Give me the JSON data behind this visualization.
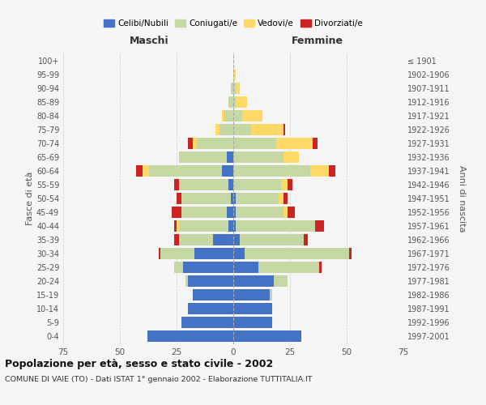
{
  "age_groups": [
    "0-4",
    "5-9",
    "10-14",
    "15-19",
    "20-24",
    "25-29",
    "30-34",
    "35-39",
    "40-44",
    "45-49",
    "50-54",
    "55-59",
    "60-64",
    "65-69",
    "70-74",
    "75-79",
    "80-84",
    "85-89",
    "90-94",
    "95-99",
    "100+"
  ],
  "birth_years": [
    "1997-2001",
    "1992-1996",
    "1987-1991",
    "1982-1986",
    "1977-1981",
    "1972-1976",
    "1967-1971",
    "1962-1966",
    "1957-1961",
    "1952-1956",
    "1947-1951",
    "1942-1946",
    "1937-1941",
    "1932-1936",
    "1927-1931",
    "1922-1926",
    "1917-1921",
    "1912-1916",
    "1907-1911",
    "1902-1906",
    "≤ 1901"
  ],
  "maschi": {
    "celibe": [
      38,
      23,
      20,
      18,
      20,
      22,
      17,
      9,
      2,
      3,
      1,
      2,
      5,
      3,
      0,
      0,
      0,
      0,
      0,
      0,
      0
    ],
    "coniugato": [
      0,
      0,
      0,
      0,
      1,
      4,
      15,
      15,
      22,
      20,
      22,
      22,
      32,
      21,
      16,
      6,
      4,
      2,
      1,
      0,
      0
    ],
    "vedovo": [
      0,
      0,
      0,
      0,
      0,
      0,
      0,
      0,
      1,
      0,
      0,
      0,
      3,
      0,
      2,
      2,
      1,
      0,
      0,
      0,
      0
    ],
    "divorziato": [
      0,
      0,
      0,
      0,
      0,
      0,
      1,
      2,
      1,
      4,
      2,
      2,
      3,
      0,
      2,
      0,
      0,
      0,
      0,
      0,
      0
    ]
  },
  "femmine": {
    "nubile": [
      30,
      17,
      17,
      16,
      18,
      11,
      5,
      3,
      1,
      1,
      1,
      0,
      0,
      0,
      0,
      0,
      0,
      0,
      0,
      0,
      0
    ],
    "coniugata": [
      0,
      0,
      0,
      1,
      6,
      27,
      46,
      28,
      35,
      21,
      19,
      21,
      34,
      22,
      19,
      8,
      4,
      1,
      1,
      0,
      0
    ],
    "vedova": [
      0,
      0,
      0,
      0,
      0,
      0,
      0,
      0,
      0,
      2,
      2,
      3,
      8,
      7,
      16,
      14,
      9,
      5,
      2,
      1,
      0
    ],
    "divorziata": [
      0,
      0,
      0,
      0,
      0,
      1,
      1,
      2,
      4,
      3,
      2,
      2,
      3,
      0,
      2,
      1,
      0,
      0,
      0,
      0,
      0
    ]
  },
  "colors": {
    "celibe": "#4472c4",
    "coniugato": "#c5d8a4",
    "vedovo": "#ffd966",
    "divorziato": "#cc2222"
  },
  "legend_labels": [
    "Celibi/Nubili",
    "Coniugati/e",
    "Vedovi/e",
    "Divorziati/e"
  ],
  "title": "Popolazione per età, sesso e stato civile - 2002",
  "subtitle": "COMUNE DI VAIE (TO) - Dati ISTAT 1° gennaio 2002 - Elaborazione TUTTITALIA.IT",
  "xlabel_left": "Maschi",
  "xlabel_right": "Femmine",
  "ylabel_left": "Fasce di età",
  "ylabel_right": "Anni di nascita",
  "xlim": 75,
  "bg_color": "#f5f5f5",
  "grid_color": "#cccccc"
}
